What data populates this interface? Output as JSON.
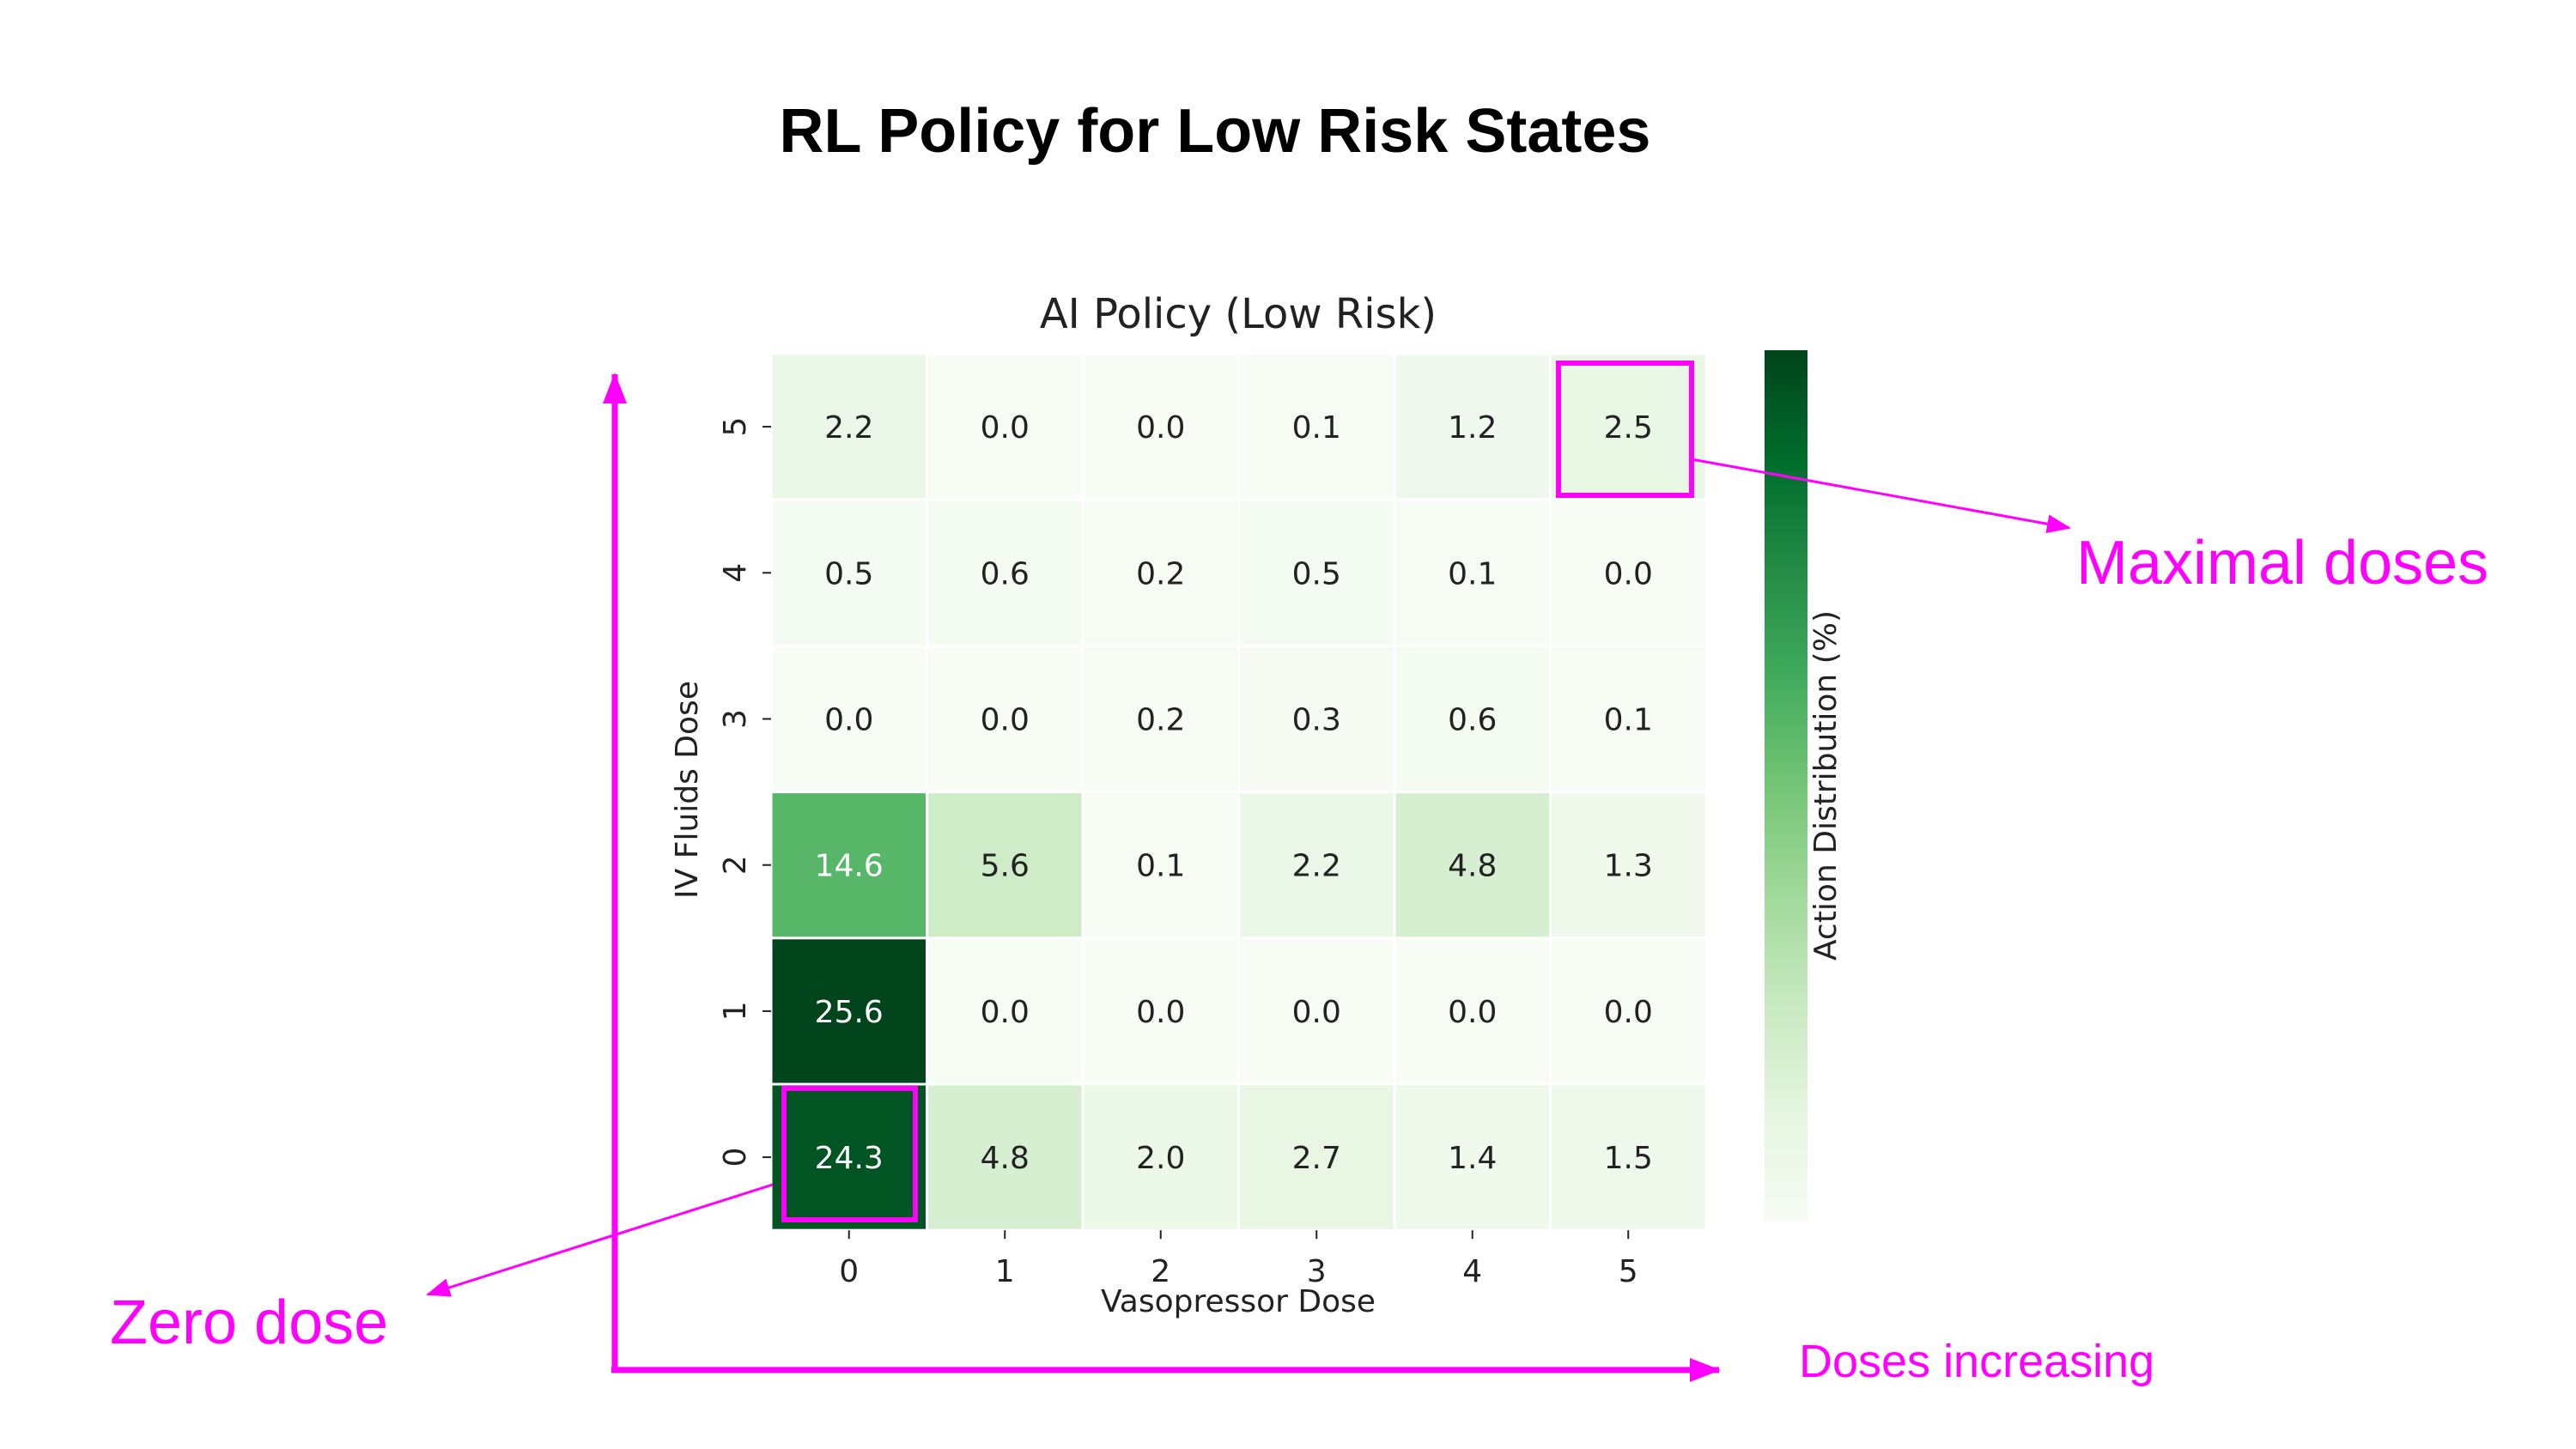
{
  "page": {
    "title": "RL Policy for Low Risk States"
  },
  "annotations": {
    "maximal": "Maximal doses",
    "zero": "Zero dose",
    "increasing": "Doses increasing"
  },
  "colors": {
    "annotation": "#ff00ff",
    "cmap_low": "#f7fcf5",
    "cmap_high": "#00441b",
    "text": "#222222"
  },
  "chart_data": {
    "type": "heatmap",
    "title": "AI Policy (Low Risk)",
    "xlabel": "Vasopressor Dose",
    "ylabel": "IV Fluids Dose",
    "colorbar_label": "Action Distribution (%)",
    "x_categories": [
      "0",
      "1",
      "2",
      "3",
      "4",
      "5"
    ],
    "y_categories": [
      "5",
      "4",
      "3",
      "2",
      "1",
      "0"
    ],
    "values": [
      [
        2.2,
        0.0,
        0.0,
        0.1,
        1.2,
        2.5
      ],
      [
        0.5,
        0.6,
        0.2,
        0.5,
        0.1,
        0.0
      ],
      [
        0.0,
        0.0,
        0.2,
        0.3,
        0.6,
        0.1
      ],
      [
        14.6,
        5.6,
        0.1,
        2.2,
        4.8,
        1.3
      ],
      [
        25.6,
        0.0,
        0.0,
        0.0,
        0.0,
        0.0
      ],
      [
        24.3,
        4.8,
        2.0,
        2.7,
        1.4,
        1.5
      ]
    ],
    "value_range": [
      0,
      25.6
    ],
    "highlighted_cells": [
      {
        "row": "5",
        "col": "5",
        "label": "Maximal doses"
      },
      {
        "row": "0",
        "col": "0",
        "label": "Zero dose"
      }
    ]
  }
}
